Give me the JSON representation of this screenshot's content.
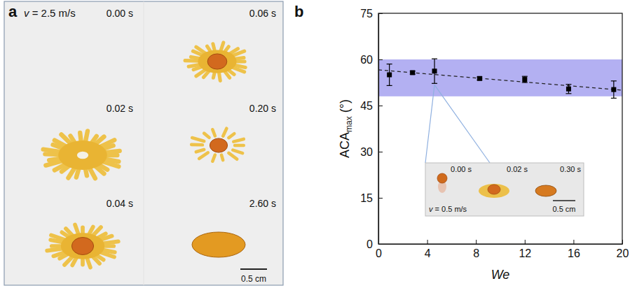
{
  "panel_labels": [
    "a",
    "b"
  ],
  "image_sequence": {
    "velocity": "v = 2.5 m/s",
    "frames": [
      "0.00 s",
      "0.02 s",
      "0.04 s",
      "0.06 s",
      "0.20 s",
      "2.60 s"
    ],
    "scale_bar": "0.5 cm"
  },
  "chart_data": {
    "type": "scatter",
    "x_label": "We",
    "y_label": {
      "base": "ACA",
      "sub": "max",
      "unit": "(°)"
    },
    "x": [
      0.9,
      2.8,
      4.6,
      8.3,
      12.0,
      15.6,
      19.3
    ],
    "values": [
      55.0,
      55.7,
      56.2,
      53.8,
      53.5,
      50.4,
      50.2
    ],
    "errors": [
      3.5,
      0.5,
      4.0,
      0.5,
      1.0,
      1.5,
      2.8
    ],
    "color": "#000000",
    "marker": "square",
    "fit": {
      "x": [
        0,
        20
      ],
      "values": [
        56.6,
        50.0
      ],
      "line_style": "dashed"
    },
    "band": {
      "values": [
        48,
        60
      ],
      "color": "#b3b0f2"
    },
    "xlim": [
      0,
      20
    ],
    "xticks": [
      0,
      4,
      8,
      12,
      16,
      20
    ],
    "ylim": [
      0,
      75
    ],
    "yticks": [
      0,
      15,
      30,
      45,
      60,
      75
    ],
    "inset": {
      "velocity": "v = 0.5 m/s",
      "frames": [
        "0.00 s",
        "0.02 s",
        "0.30 s"
      ],
      "scale_bar": "0.5 cm",
      "point": 2
    }
  }
}
